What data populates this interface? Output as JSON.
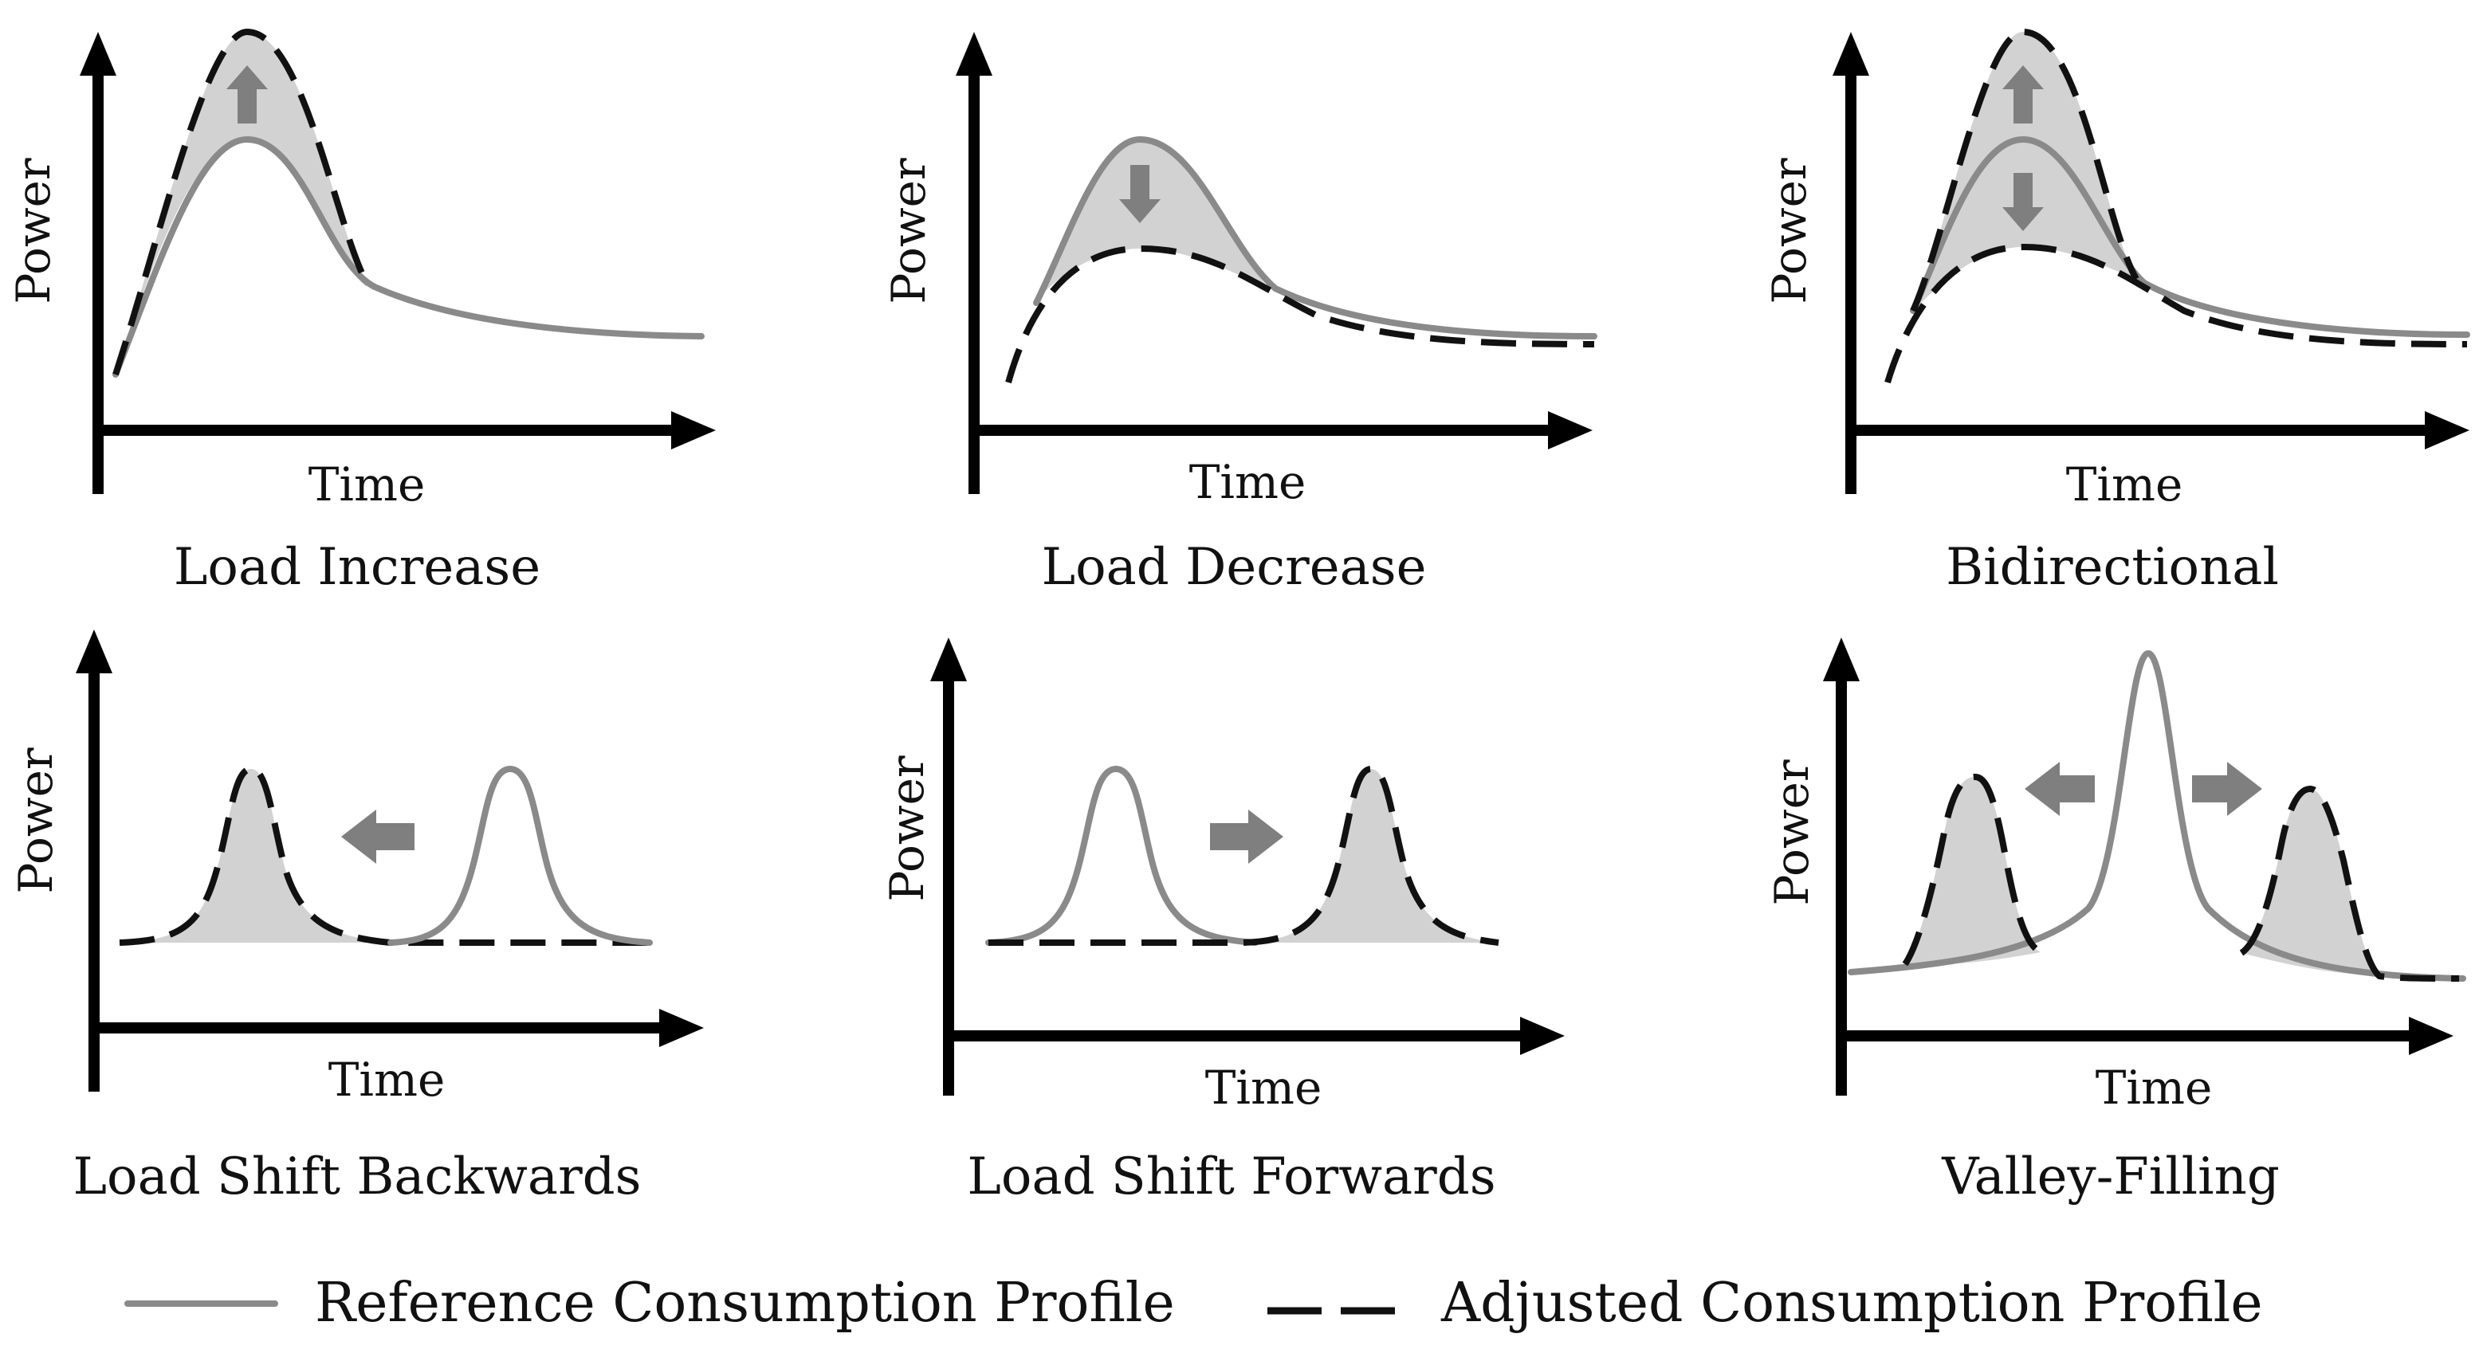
{
  "axis_labels": {
    "power": "Power",
    "time": "Time"
  },
  "panels": [
    {
      "title": "Load Increase"
    },
    {
      "title": "Load Decrease"
    },
    {
      "title": "Bidirectional"
    },
    {
      "title": "Load Shift Backwards"
    },
    {
      "title": "Load Shift Forwards"
    },
    {
      "title": "Valley-Filling"
    }
  ],
  "legend": {
    "reference": "Reference Consumption Profile",
    "adjusted": "Adjusted Consumption Profile"
  },
  "colors": {
    "reference_line": "#8a8a8a",
    "adjusted_line": "#111111",
    "fill": "#d2d2d2",
    "shift_arrow": "#7f7f7f"
  }
}
